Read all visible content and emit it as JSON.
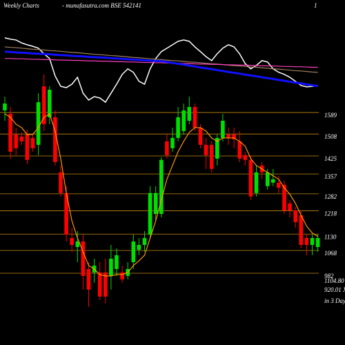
{
  "chart_data": {
    "type": "candlestick",
    "title": "Weekly Charts",
    "subtitle": "- munafasutra.com BSE 542141",
    "corner_text": "1",
    "annotations": [
      "1104.80",
      "920.01 X",
      "in 3 Days"
    ],
    "categories": [
      null,
      null,
      null,
      null,
      null,
      null,
      null,
      null,
      null,
      null,
      null,
      null,
      null,
      null,
      null,
      null,
      null,
      null,
      null,
      null,
      null,
      null,
      null,
      null,
      null,
      null,
      null,
      null,
      null,
      null,
      null,
      null,
      null,
      null,
      null,
      null,
      null,
      null,
      null,
      null,
      null,
      null,
      null,
      null,
      null,
      null,
      null,
      null,
      null,
      null,
      null,
      null,
      null,
      null,
      null,
      null,
      null
    ],
    "open": [
      1597,
      1584,
      1506,
      1498,
      1506,
      1493,
      1467,
      1688,
      1571,
      1571,
      1363,
      1285,
      1115,
      1081,
      1102,
      998,
      985,
      985,
      985,
      972,
      998,
      985,
      972,
      1024,
      1071,
      1089,
      1128,
      1206,
      1206,
      1480,
      1454,
      1493,
      1519,
      1558,
      1610,
      1532,
      1467,
      1467,
      1415,
      1493,
      1506,
      1506,
      1480,
      1428,
      1410,
      1285,
      1389,
      1311,
      1324,
      1324,
      1316,
      1246,
      1219,
      1201,
      1115,
      1089,
      1081
    ],
    "high": [
      1649,
      1610,
      1532,
      1514,
      1524,
      1506,
      1662,
      1733,
      1688,
      1597,
      1389,
      1311,
      1154,
      1141,
      1128,
      1024,
      1037,
      1024,
      1037,
      1089,
      1076,
      1011,
      1024,
      1128,
      1115,
      1141,
      1311,
      1311,
      1420,
      1506,
      1532,
      1610,
      1623,
      1649,
      1623,
      1545,
      1493,
      1480,
      1506,
      1584,
      1532,
      1532,
      1519,
      1441,
      1428,
      1389,
      1402,
      1376,
      1376,
      1350,
      1332,
      1259,
      1233,
      1219,
      1128,
      1128,
      1128
    ],
    "low": [
      1558,
      1415,
      1428,
      1467,
      1394,
      1441,
      1428,
      1519,
      1545,
      1389,
      1272,
      1102,
      1063,
      1024,
      920,
      855,
      946,
      881,
      868,
      920,
      972,
      946,
      959,
      998,
      1050,
      1063,
      1115,
      1180,
      1193,
      1415,
      1441,
      1480,
      1506,
      1545,
      1519,
      1454,
      1376,
      1363,
      1389,
      1480,
      1467,
      1454,
      1402,
      1389,
      1259,
      1272,
      1337,
      1298,
      1311,
      1285,
      1206,
      1193,
      1154,
      1076,
      1050,
      1050,
      1063
    ],
    "close": [
      1623,
      1441,
      1454,
      1480,
      1410,
      1454,
      1628,
      1545,
      1675,
      1402,
      1285,
      1128,
      1089,
      1102,
      972,
      920,
      1011,
      894,
      894,
      1037,
      1050,
      959,
      998,
      1102,
      1089,
      1115,
      1285,
      1285,
      1410,
      1428,
      1493,
      1571,
      1597,
      1610,
      1532,
      1467,
      1428,
      1376,
      1493,
      1558,
      1493,
      1488,
      1415,
      1410,
      1272,
      1363,
      1363,
      1363,
      1337,
      1305,
      1219,
      1219,
      1175,
      1089,
      1089,
      1115,
      1115
    ],
    "up_color": "#00e000",
    "down_color": "#ff0000",
    "lines": [
      {
        "color": "#ffffff",
        "values": [
          1871,
          1866,
          1863,
          1852,
          1845,
          1839,
          1832,
          1811,
          1793,
          1727,
          1688,
          1683,
          1696,
          1722,
          1662,
          1636,
          1649,
          1644,
          1628,
          1662,
          1696,
          1733,
          1754,
          1741,
          1707,
          1696,
          1754,
          1793,
          1819,
          1832,
          1845,
          1858,
          1863,
          1858,
          1837,
          1819,
          1800,
          1785,
          1811,
          1832,
          1845,
          1837,
          1811,
          1774,
          1754,
          1767,
          1785,
          1780,
          1754,
          1741,
          1733,
          1722,
          1707,
          1691,
          1686,
          1688,
          1691
        ]
      },
      {
        "color": "#a08060",
        "values": [
          1837,
          1835,
          1834,
          1832,
          1830,
          1828,
          1827,
          1825,
          1823,
          1822,
          1820,
          1818,
          1816,
          1815,
          1813,
          1811,
          1809,
          1808,
          1806,
          1804,
          1803,
          1801,
          1799,
          1797,
          1796,
          1794,
          1792,
          1791,
          1789,
          1787,
          1785,
          1784,
          1782,
          1780,
          1779,
          1777,
          1775,
          1773,
          1772,
          1770,
          1768,
          1766,
          1765,
          1763,
          1761,
          1760,
          1758,
          1756,
          1754,
          1753,
          1751,
          1749,
          1747,
          1746,
          1744,
          1742,
          1741
        ]
      },
      {
        "color": "#ff40c0",
        "values": [
          1793,
          1793,
          1792,
          1792,
          1791,
          1790,
          1790,
          1789,
          1789,
          1788,
          1787,
          1787,
          1786,
          1786,
          1785,
          1784,
          1784,
          1783,
          1783,
          1782,
          1781,
          1781,
          1780,
          1780,
          1779,
          1778,
          1778,
          1777,
          1777,
          1776,
          1775,
          1775,
          1774,
          1774,
          1773,
          1772,
          1772,
          1771,
          1771,
          1770,
          1769,
          1769,
          1768,
          1768,
          1767,
          1766,
          1766,
          1765,
          1765,
          1764,
          1763,
          1763,
          1762,
          1762,
          1761,
          1760,
          1760
        ]
      },
      {
        "color": "#1010ff",
        "values": [
          1819,
          1818,
          1816,
          1815,
          1814,
          1812,
          1811,
          1810,
          1809,
          1807,
          1806,
          1805,
          1803,
          1802,
          1801,
          1799,
          1798,
          1797,
          1796,
          1794,
          1793,
          1792,
          1790,
          1789,
          1788,
          1786,
          1785,
          1784,
          1783,
          1780,
          1776,
          1773,
          1770,
          1766,
          1763,
          1759,
          1756,
          1753,
          1749,
          1746,
          1742,
          1739,
          1736,
          1732,
          1729,
          1726,
          1722,
          1719,
          1716,
          1712,
          1709,
          1705,
          1702,
          1699,
          1695,
          1692,
          1689
        ]
      },
      {
        "color": "#ff9900",
        "values": [
          1584,
          1571,
          1545,
          1532,
          1506,
          1506,
          1532,
          1571,
          1584,
          1519,
          1415,
          1285,
          1180,
          1115,
          1063,
          1011,
          998,
          977,
          972,
          972,
          977,
          977,
          985,
          1011,
          1029,
          1050,
          1115,
          1180,
          1259,
          1337,
          1389,
          1441,
          1480,
          1514,
          1532,
          1532,
          1519,
          1493,
          1480,
          1493,
          1493,
          1493,
          1480,
          1462,
          1415,
          1389,
          1376,
          1363,
          1350,
          1337,
          1305,
          1280,
          1246,
          1201,
          1160,
          1134,
          1121
        ]
      }
    ],
    "ylim": [
      711,
      2014
    ],
    "yticks": [
      1589,
      1508,
      1425,
      1357,
      1282,
      1218,
      1130,
      1068,
      982
    ],
    "grid": true,
    "grid_color": "#c88a10"
  }
}
